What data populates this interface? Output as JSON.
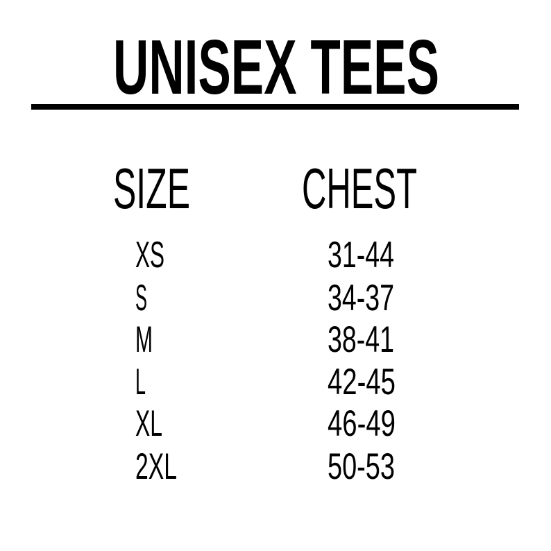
{
  "title": "UNISEX TEES",
  "headers": {
    "size": "SIZE",
    "chest": "CHEST"
  },
  "rows": [
    {
      "size": "XS",
      "chest": "31-44"
    },
    {
      "size": "S",
      "chest": "34-37"
    },
    {
      "size": "M",
      "chest": "38-41"
    },
    {
      "size": "L",
      "chest": "42-45"
    },
    {
      "size": "XL",
      "chest": "46-49"
    },
    {
      "size": "2XL",
      "chest": "50-53"
    }
  ],
  "colors": {
    "text": "#000000",
    "background": "#ffffff"
  }
}
